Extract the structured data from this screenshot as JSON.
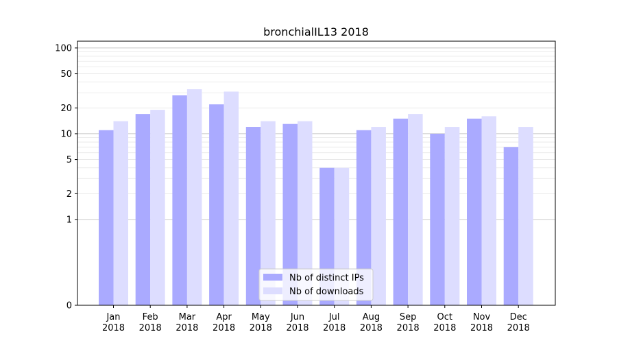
{
  "chart_data": {
    "type": "bar",
    "title": "bronchialIL13 2018",
    "xlabel": "",
    "ylabel": "",
    "y_scale": "symlog",
    "ylim": [
      0,
      120
    ],
    "y_ticks": [
      0,
      1,
      2,
      5,
      10,
      20,
      50,
      100
    ],
    "categories": [
      [
        "Jan",
        "2018"
      ],
      [
        "Feb",
        "2018"
      ],
      [
        "Mar",
        "2018"
      ],
      [
        "Apr",
        "2018"
      ],
      [
        "May",
        "2018"
      ],
      [
        "Jun",
        "2018"
      ],
      [
        "Jul",
        "2018"
      ],
      [
        "Aug",
        "2018"
      ],
      [
        "Sep",
        "2018"
      ],
      [
        "Oct",
        "2018"
      ],
      [
        "Nov",
        "2018"
      ],
      [
        "Dec",
        "2018"
      ]
    ],
    "series": [
      {
        "name": "Nb of distinct IPs",
        "color": "#aaaaff",
        "values": [
          11,
          17,
          28,
          22,
          12,
          13,
          4,
          11,
          15,
          10,
          15,
          7
        ]
      },
      {
        "name": "Nb of downloads",
        "color": "#ddddff",
        "values": [
          14,
          19,
          33,
          31,
          14,
          14,
          4,
          12,
          17,
          12,
          16,
          12
        ]
      }
    ],
    "grid": true,
    "legend_position": "bottom-center"
  }
}
